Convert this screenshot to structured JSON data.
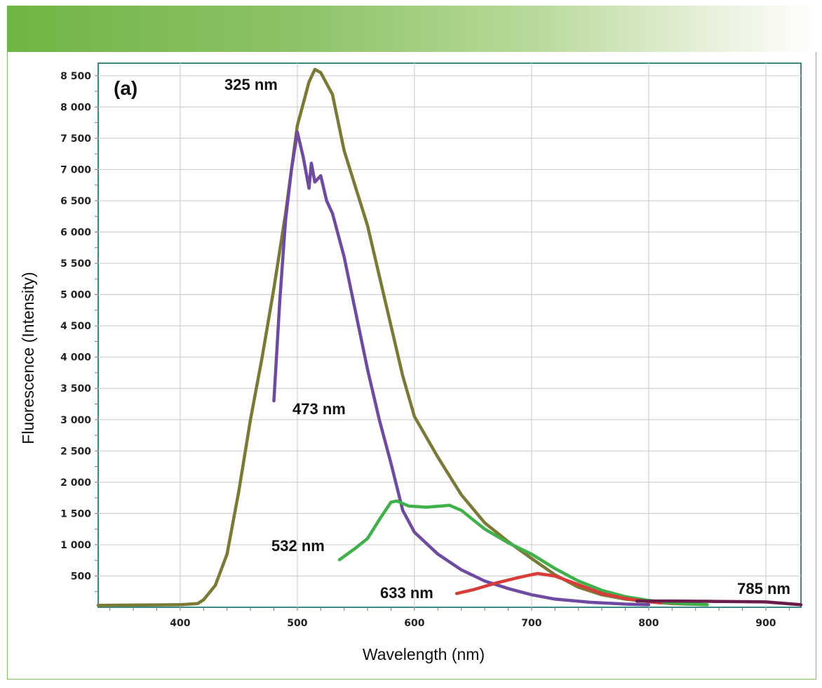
{
  "chart_data": {
    "type": "line",
    "panel_label": "(a)",
    "xlabel": "Wavelength (nm)",
    "ylabel": "Fluorescence (Intensity)",
    "xlim": [
      330,
      930
    ],
    "ylim": [
      0,
      8700
    ],
    "x_ticks": [
      400,
      500,
      600,
      700,
      800,
      900
    ],
    "y_ticks": [
      500,
      1000,
      1500,
      2000,
      2500,
      3000,
      3500,
      4000,
      4500,
      5000,
      5500,
      6000,
      6500,
      7000,
      7500,
      8000,
      8500
    ],
    "y_tick_labels": [
      "500",
      "1 000",
      "1 500",
      "2 000",
      "2 500",
      "3 000",
      "3 500",
      "4 000",
      "4 500",
      "5 000",
      "5 500",
      "6 000",
      "6 500",
      "7 000",
      "7 500",
      "8 000",
      "8 500"
    ],
    "x_tick_labels": [
      "400",
      "500",
      "600",
      "700",
      "800",
      "900"
    ],
    "grid": true,
    "series": [
      {
        "name": "325 nm",
        "color": "#7a7a36",
        "x": [
          330,
          400,
          415,
          420,
          430,
          440,
          450,
          460,
          470,
          480,
          490,
          500,
          510,
          515,
          520,
          530,
          540,
          550,
          560,
          570,
          580,
          590,
          600,
          620,
          640,
          660,
          680,
          700,
          720,
          740,
          760,
          780,
          800,
          820,
          850
        ],
        "y": [
          30,
          40,
          60,
          120,
          350,
          850,
          1850,
          3000,
          4000,
          5100,
          6300,
          7700,
          8400,
          8600,
          8550,
          8200,
          7300,
          6700,
          6100,
          5300,
          4500,
          3700,
          3050,
          2400,
          1800,
          1350,
          1050,
          780,
          520,
          320,
          200,
          130,
          90,
          60,
          40
        ]
      },
      {
        "name": "473 nm",
        "color": "#6e4aa0",
        "x": [
          480,
          485,
          490,
          495,
          500,
          505,
          510,
          512,
          515,
          520,
          525,
          530,
          540,
          550,
          560,
          570,
          580,
          590,
          600,
          620,
          640,
          660,
          680,
          700,
          720,
          750,
          780,
          800
        ],
        "y": [
          3300,
          4900,
          6200,
          7000,
          7600,
          7200,
          6700,
          7100,
          6800,
          6900,
          6500,
          6300,
          5600,
          4700,
          3800,
          3000,
          2300,
          1550,
          1200,
          850,
          600,
          420,
          300,
          200,
          130,
          80,
          50,
          40
        ]
      },
      {
        "name": "532 nm",
        "color": "#3fb04a",
        "x": [
          536,
          550,
          560,
          570,
          580,
          585,
          595,
          610,
          630,
          640,
          660,
          680,
          700,
          720,
          740,
          760,
          780,
          800,
          820,
          850
        ],
        "y": [
          760,
          950,
          1100,
          1400,
          1680,
          1700,
          1620,
          1600,
          1630,
          1550,
          1250,
          1030,
          850,
          620,
          420,
          270,
          170,
          110,
          70,
          40
        ]
      },
      {
        "name": "633 nm",
        "color": "#d93a3a",
        "x": [
          636,
          650,
          670,
          690,
          705,
          720,
          740,
          760,
          780,
          800,
          810
        ],
        "y": [
          220,
          280,
          390,
          480,
          540,
          500,
          360,
          220,
          140,
          90,
          70
        ]
      },
      {
        "name": "785 nm",
        "color": "#6a1c4c",
        "x": [
          790,
          820,
          850,
          880,
          900,
          930
        ],
        "y": [
          100,
          100,
          95,
          90,
          85,
          40
        ]
      }
    ]
  }
}
